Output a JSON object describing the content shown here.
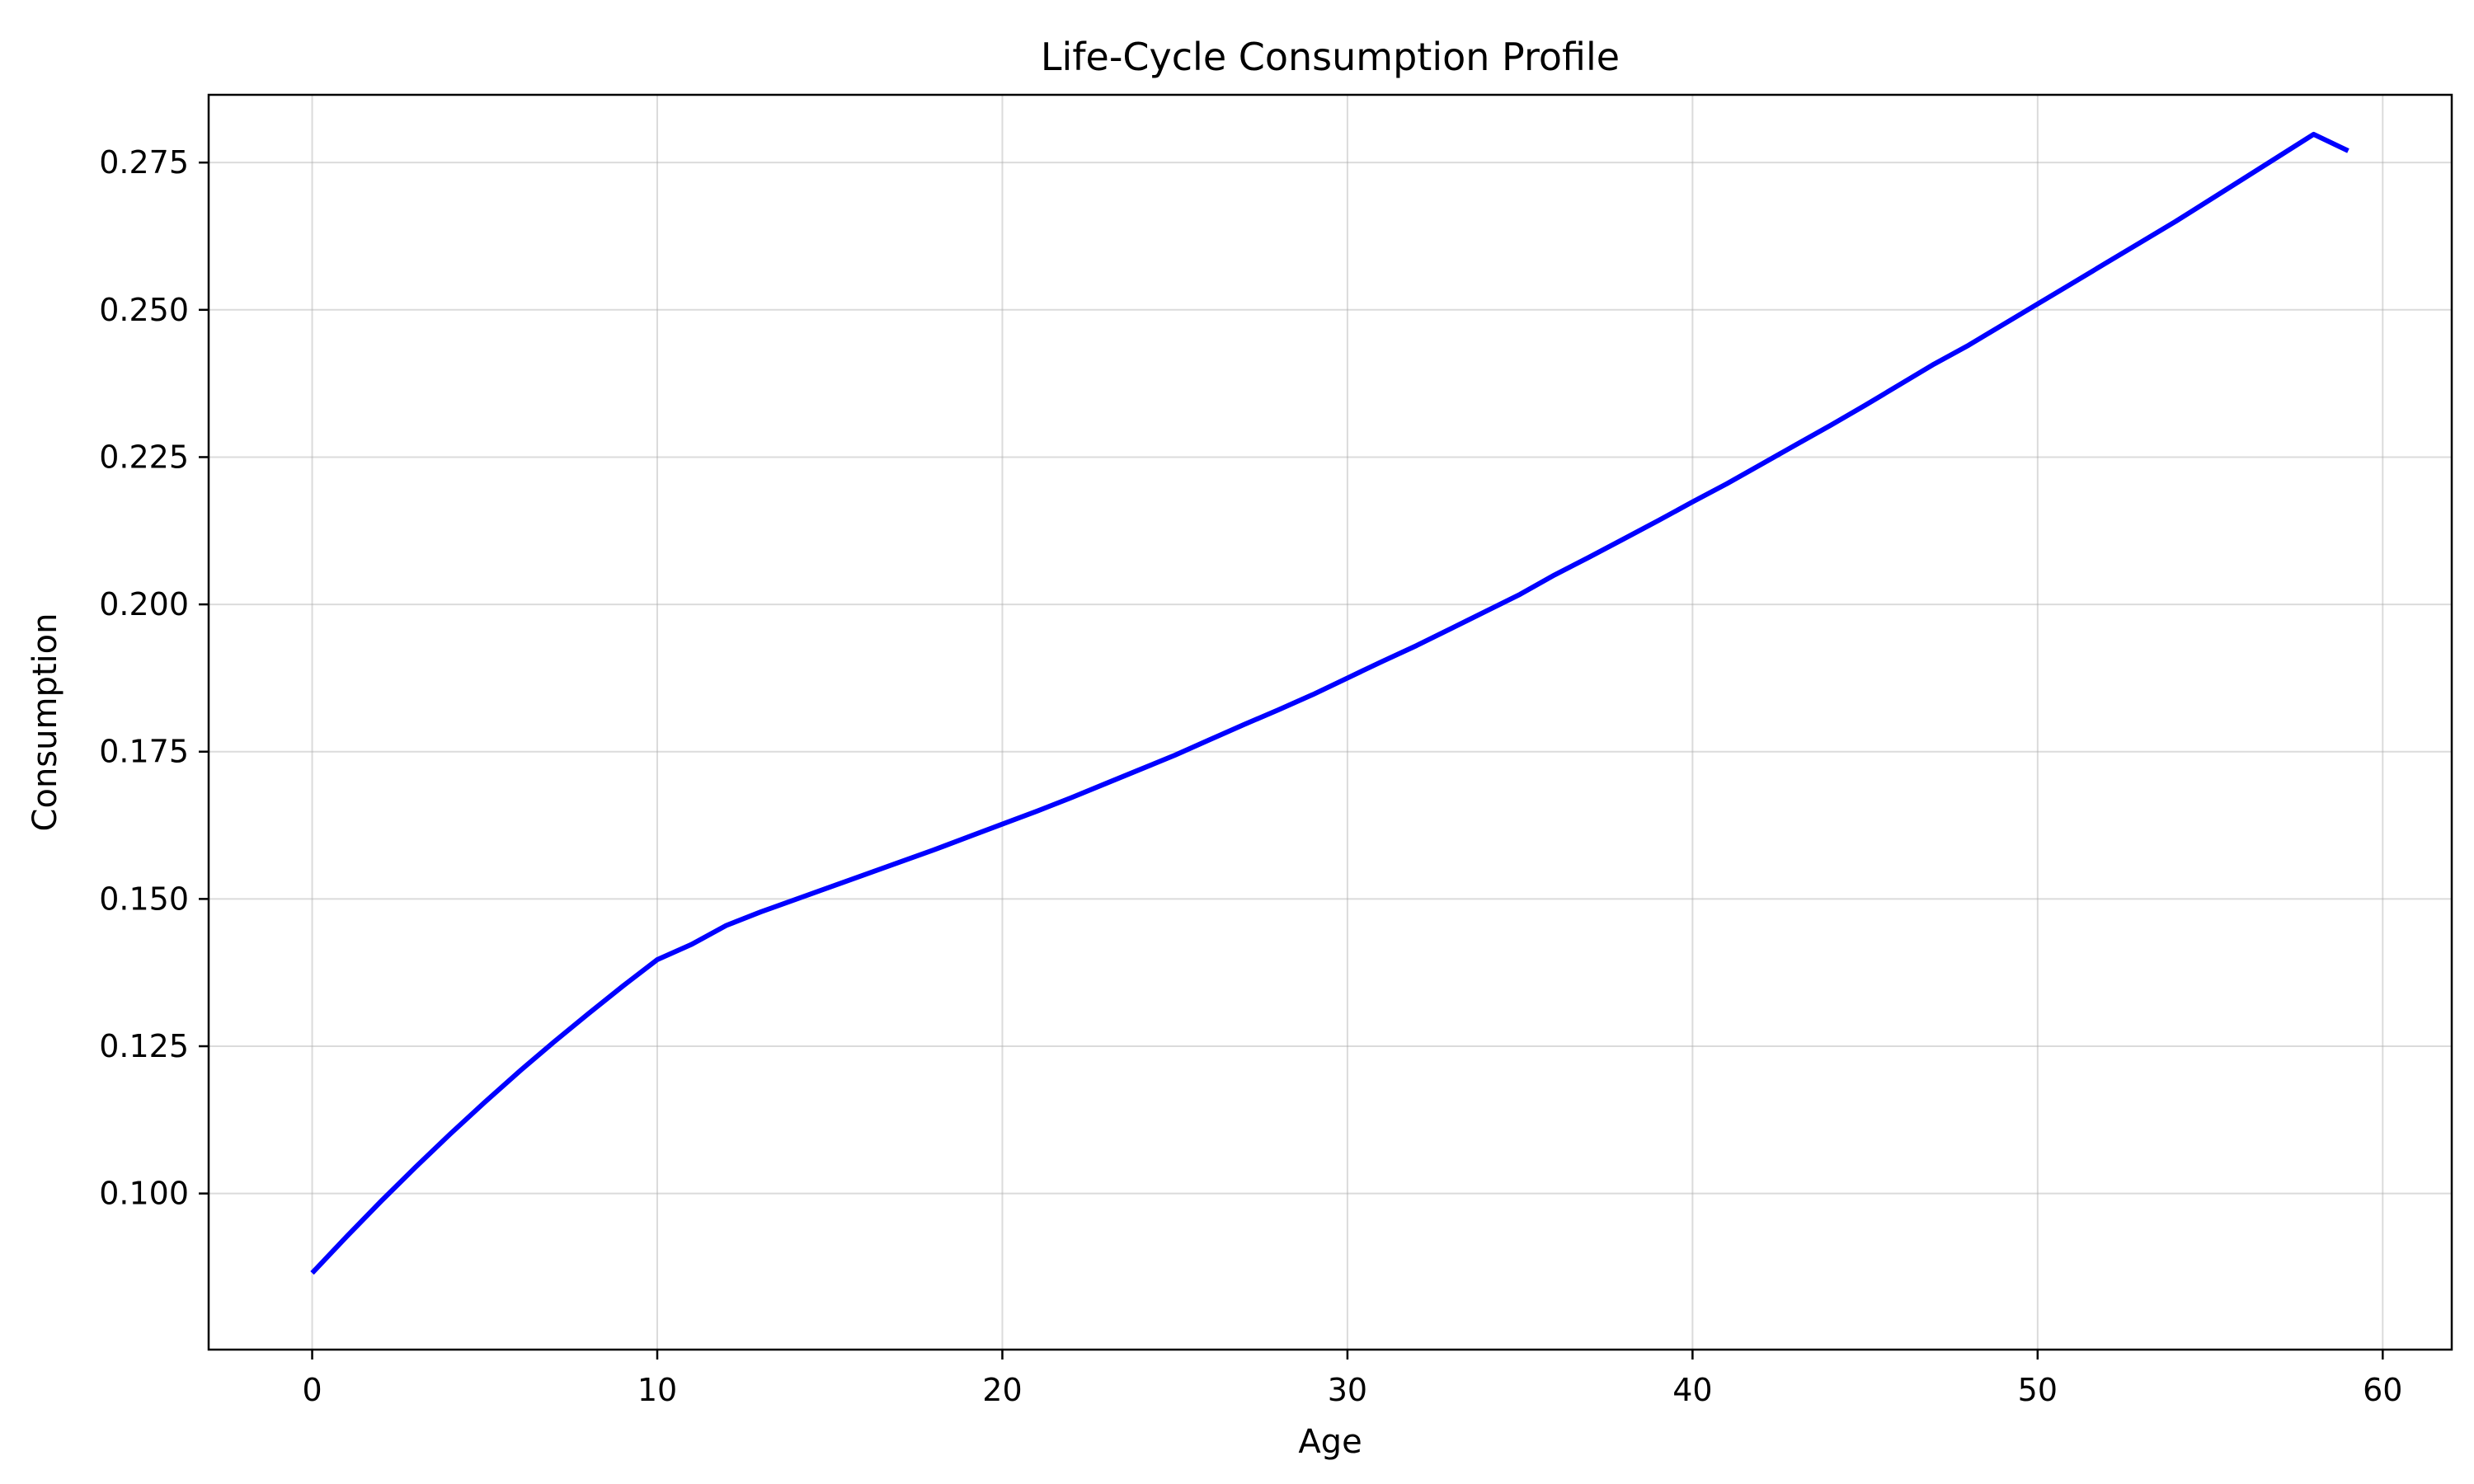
{
  "chart_data": {
    "type": "line",
    "title": "Life-Cycle Consumption Profile",
    "xlabel": "Age",
    "ylabel": "Consumption",
    "xlim": [
      -3,
      62
    ],
    "ylim": [
      0.0735,
      0.2865
    ],
    "xticks": [
      0,
      10,
      20,
      30,
      40,
      50,
      60
    ],
    "xtick_labels": [
      "0",
      "10",
      "20",
      "30",
      "40",
      "50",
      "60"
    ],
    "yticks": [
      0.1,
      0.125,
      0.15,
      0.175,
      0.2,
      0.225,
      0.25,
      0.275
    ],
    "ytick_labels": [
      "0.100",
      "0.125",
      "0.150",
      "0.175",
      "0.200",
      "0.225",
      "0.250",
      "0.275"
    ],
    "grid": true,
    "legend": "none",
    "series": [
      {
        "color": "#0000ff",
        "x": [
          0,
          1,
          2,
          3,
          4,
          5,
          6,
          7,
          8,
          9,
          10,
          11,
          12,
          13,
          14,
          15,
          16,
          17,
          18,
          19,
          20,
          21,
          22,
          23,
          24,
          25,
          26,
          27,
          28,
          29,
          30,
          31,
          32,
          33,
          34,
          35,
          36,
          37,
          38,
          39,
          40,
          41,
          42,
          43,
          44,
          45,
          46,
          47,
          48,
          49,
          50,
          51,
          52,
          53,
          54,
          55,
          56,
          57,
          58,
          59
        ],
        "values": [
          0.0865,
          0.0927,
          0.0987,
          0.1045,
          0.1101,
          0.1155,
          0.1207,
          0.1257,
          0.1305,
          0.1352,
          0.1397,
          0.1423,
          0.1455,
          0.1478,
          0.1499,
          0.152,
          0.1541,
          0.1562,
          0.1583,
          0.1605,
          0.1627,
          0.1649,
          0.1672,
          0.1696,
          0.172,
          0.1744,
          0.177,
          0.1796,
          0.1821,
          0.1847,
          0.1875,
          0.1903,
          0.193,
          0.1959,
          0.1988,
          0.2017,
          0.205,
          0.208,
          0.2111,
          0.2142,
          0.2174,
          0.2205,
          0.2238,
          0.2271,
          0.2304,
          0.2338,
          0.2373,
          0.2408,
          0.244,
          0.2475,
          0.251,
          0.2545,
          0.258,
          0.2615,
          0.265,
          0.2687,
          0.2724,
          0.2761,
          0.2798,
          0.277
        ]
      }
    ]
  }
}
